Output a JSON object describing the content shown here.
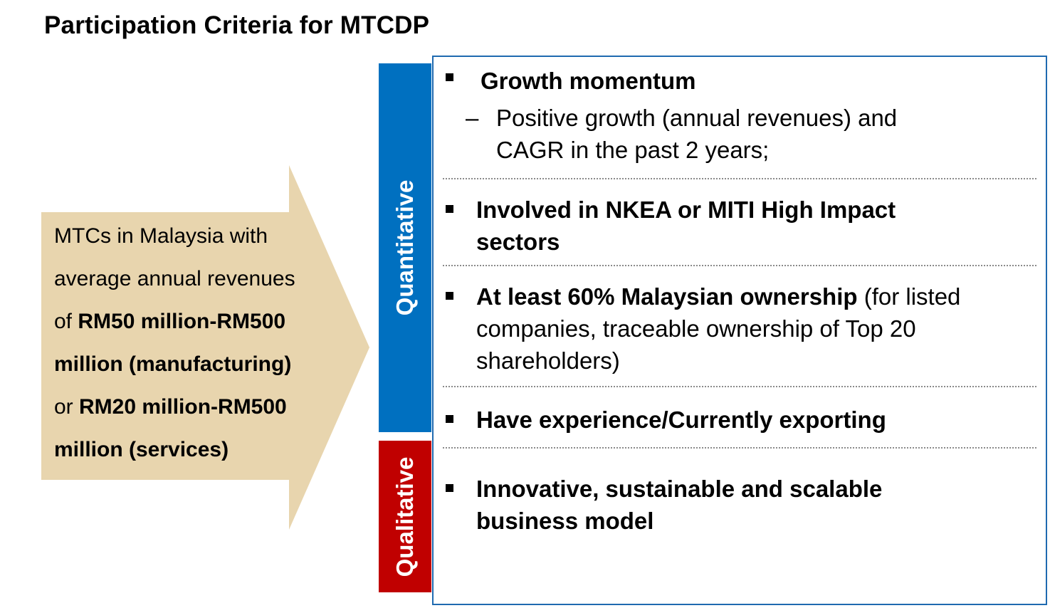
{
  "title": "Participation Criteria for MTCDP",
  "eligibility": {
    "line1": "MTCs in Malaysia with",
    "line2": "average annual revenues",
    "line3_prefix": "of ",
    "line3_bold": "RM50 million-RM500",
    "line4_bold": "million (manufacturing)",
    "line5_prefix": "or ",
    "line5_bold": "RM20 million-RM500",
    "line6_bold": "million (services)"
  },
  "colors": {
    "arrow": "#e8d5ae",
    "quantitative": "#0070c0",
    "qualitative": "#c00000",
    "border": "#1f6ab0"
  },
  "bands": {
    "quantitative": "Quantitative",
    "qualitative": "Qualitative"
  },
  "criteria": {
    "growth": {
      "title": "Growth momentum",
      "sub_line1": "Positive growth (annual revenues) and",
      "sub_line2": "CAGR in the past 2 years;"
    },
    "nkea": {
      "line1": "Involved in NKEA or MITI High Impact",
      "line2": "sectors"
    },
    "ownership": {
      "bold": "At least 60% Malaysian ownership",
      "rest1": " (for listed",
      "line2": "companies, traceable ownership of Top 20",
      "line3": "shareholders)"
    },
    "export": {
      "line1": "Have experience/Currently exporting"
    },
    "innovative": {
      "line1": "Innovative, sustainable and scalable",
      "line2": "business model"
    }
  }
}
